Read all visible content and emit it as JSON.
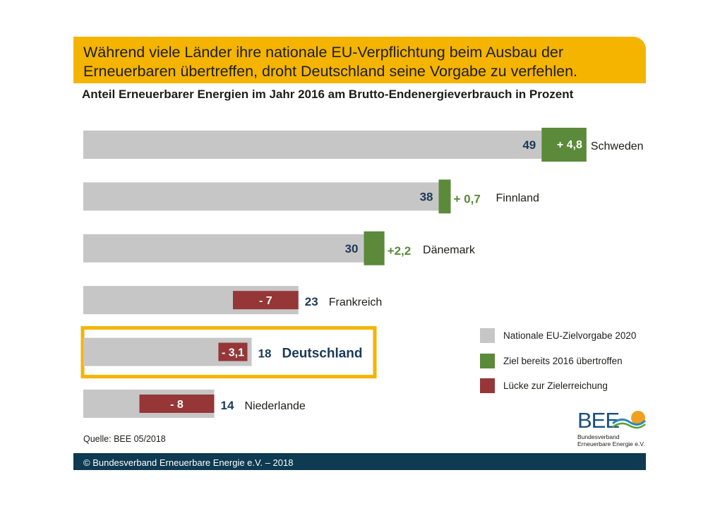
{
  "headline": "Während viele Länder ihre nationale EU-Verpflichtung beim Ausbau der Erneuerbaren übertreffen, droht Deutschland seine Vorgabe zu verfehlen.",
  "chart_data": {
    "type": "bar",
    "title": "Anteil Erneuerbarer Energien im Jahr 2016 am Brutto-Endenergieverbrauch in Prozent",
    "orientation": "horizontal",
    "categories": [
      "Schweden",
      "Finnland",
      "Dänemark",
      "Frankreich",
      "Deutschland",
      "Niederlande"
    ],
    "series": [
      {
        "name": "Nationale EU-Zielvorgabe 2020",
        "color": "#c6c6c6",
        "values": [
          49,
          38,
          30,
          23,
          18,
          14
        ]
      },
      {
        "name": "Ziel bereits 2016 übertroffen",
        "color": "#5a8a3a",
        "values": [
          4.8,
          0.7,
          2.2,
          0,
          0,
          0
        ]
      },
      {
        "name": "Lücke zur Zielerreichung",
        "color": "#963636",
        "values": [
          0,
          0,
          0,
          7,
          3.1,
          8
        ]
      }
    ],
    "target_labels": [
      "49",
      "38",
      "30",
      "23",
      "18",
      "14"
    ],
    "diff_labels": [
      "+ 4,8",
      "+ 0,7",
      "+2,2",
      "- 7",
      "- 3,1",
      "- 8"
    ],
    "highlight": "Deutschland",
    "highlight_color": "#f4b400",
    "text_color": "#1b3a57",
    "diff_pos_color": "#5a8a3a"
  },
  "legend": [
    {
      "label": "Nationale EU-Zielvorgabe 2020",
      "color": "#c6c6c6"
    },
    {
      "label": "Ziel bereits 2016 übertroffen",
      "color": "#5a8a3a"
    },
    {
      "label": "Lücke zur Zielerreichung",
      "color": "#963636"
    }
  ],
  "source": "Quelle: BEE 05/2018",
  "footer": "© Bundesverband Erneuerbare Energie e.V. – 2018",
  "logo": {
    "name": "BEE",
    "line1": "Bundesverband",
    "line2": "Erneuerbare Energie e.V."
  },
  "colors": {
    "accent": "#f4b400",
    "footer": "#0e3a52"
  }
}
